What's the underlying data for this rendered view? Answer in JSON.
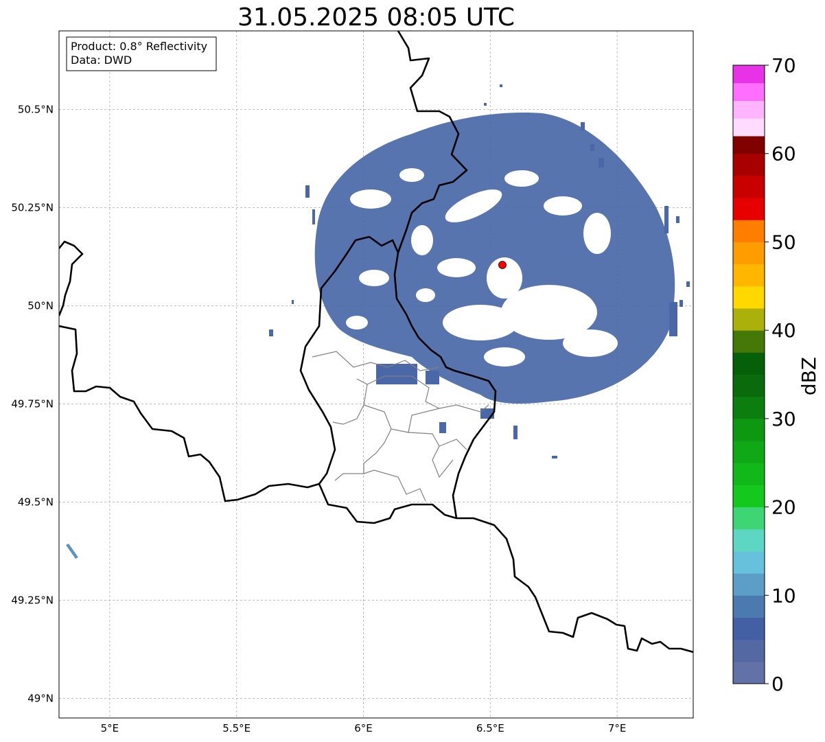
{
  "title": "31.05.2025 08:05 UTC",
  "info_box": {
    "product_line": "Product: 0.8° Reflectivity",
    "data_line": "Data: DWD"
  },
  "map": {
    "lon_ticks": [
      {
        "value": 5.0,
        "label": "5°E"
      },
      {
        "value": 5.5,
        "label": "5.5°E"
      },
      {
        "value": 6.0,
        "label": "6°E"
      },
      {
        "value": 6.5,
        "label": "6.5°E"
      },
      {
        "value": 7.0,
        "label": "7°E"
      }
    ],
    "lat_ticks": [
      {
        "value": 50.5,
        "label": "50.5°N"
      },
      {
        "value": 50.25,
        "label": "50.25°N"
      },
      {
        "value": 50.0,
        "label": "50°N"
      },
      {
        "value": 49.75,
        "label": "49.75°N"
      },
      {
        "value": 49.5,
        "label": "49.5°N"
      },
      {
        "value": 49.25,
        "label": "49.25°N"
      },
      {
        "value": 49.0,
        "label": "49°N"
      }
    ],
    "extent": {
      "lon_min": 4.8,
      "lon_max": 7.3,
      "lat_min": 48.95,
      "lat_max": 50.7
    },
    "gridlines": true,
    "radar_site": {
      "lon": 6.55,
      "lat": 50.11,
      "color": "#ff0000"
    },
    "echo_color": "#4a68a8"
  },
  "colorbar": {
    "label": "dBZ",
    "min": 0,
    "max": 70,
    "ticks": [
      {
        "value": 0,
        "label": "0"
      },
      {
        "value": 10,
        "label": "10"
      },
      {
        "value": 20,
        "label": "20"
      },
      {
        "value": 30,
        "label": "30"
      },
      {
        "value": 40,
        "label": "40"
      },
      {
        "value": 50,
        "label": "50"
      },
      {
        "value": 60,
        "label": "60"
      },
      {
        "value": 70,
        "label": "70"
      }
    ],
    "colors": [
      "#6272a8",
      "#5468a4",
      "#4460a4",
      "#4a7ab0",
      "#5c9ec6",
      "#66c2dc",
      "#5ed6c4",
      "#3ed674",
      "#14c81e",
      "#12b81a",
      "#10a816",
      "#0e9812",
      "#0c7e10",
      "#0a6a0c",
      "#066008",
      "#467808",
      "#acb00a",
      "#ffd800",
      "#ffb600",
      "#ff9c00",
      "#ff7e00",
      "#e60000",
      "#c80000",
      "#a80000",
      "#800000",
      "#ffdcff",
      "#ffb4ff",
      "#ff6eff",
      "#e832e8"
    ]
  }
}
